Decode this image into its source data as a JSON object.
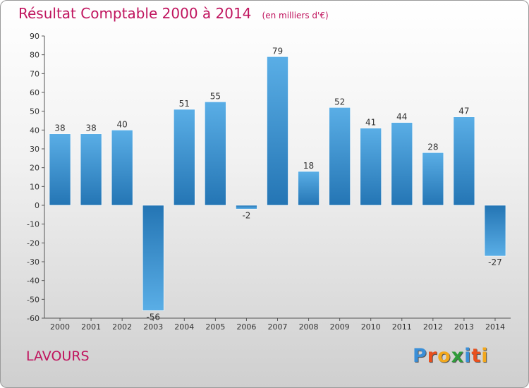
{
  "title": "Résultat Comptable 2000 à 2014",
  "unit": "(en milliers d'€)",
  "commune": "LAVOURS",
  "brand": {
    "name": "Proxiti",
    "letters": [
      {
        "ch": "P",
        "color": "#3a8fd8"
      },
      {
        "ch": "r",
        "color": "#e8501e"
      },
      {
        "ch": "o",
        "color": "#f2a81d"
      },
      {
        "ch": "x",
        "color": "#2f9c3a"
      },
      {
        "ch": "i",
        "color": "#3a8fd8"
      },
      {
        "ch": "t",
        "color": "#e8501e"
      },
      {
        "ch": "i",
        "color": "#f2a81d"
      }
    ]
  },
  "colors": {
    "bar_light": "#5aaee6",
    "bar_dark": "#2475b4",
    "text": "#c0145e"
  },
  "chart_data": {
    "type": "bar",
    "title": "Résultat Comptable 2000 à 2014",
    "categories": [
      "2000",
      "2001",
      "2002",
      "2003",
      "2004",
      "2005",
      "2006",
      "2007",
      "2008",
      "2009",
      "2010",
      "2011",
      "2012",
      "2013",
      "2014"
    ],
    "values": [
      38,
      38,
      40,
      -56,
      51,
      55,
      -2,
      79,
      18,
      52,
      41,
      44,
      28,
      47,
      -27
    ],
    "ylim": [
      -60,
      90
    ],
    "yticks": [
      90,
      80,
      70,
      60,
      50,
      40,
      30,
      20,
      10,
      0,
      -10,
      -20,
      -30,
      -40,
      -50,
      -60
    ],
    "grid": false,
    "legend": "none"
  }
}
